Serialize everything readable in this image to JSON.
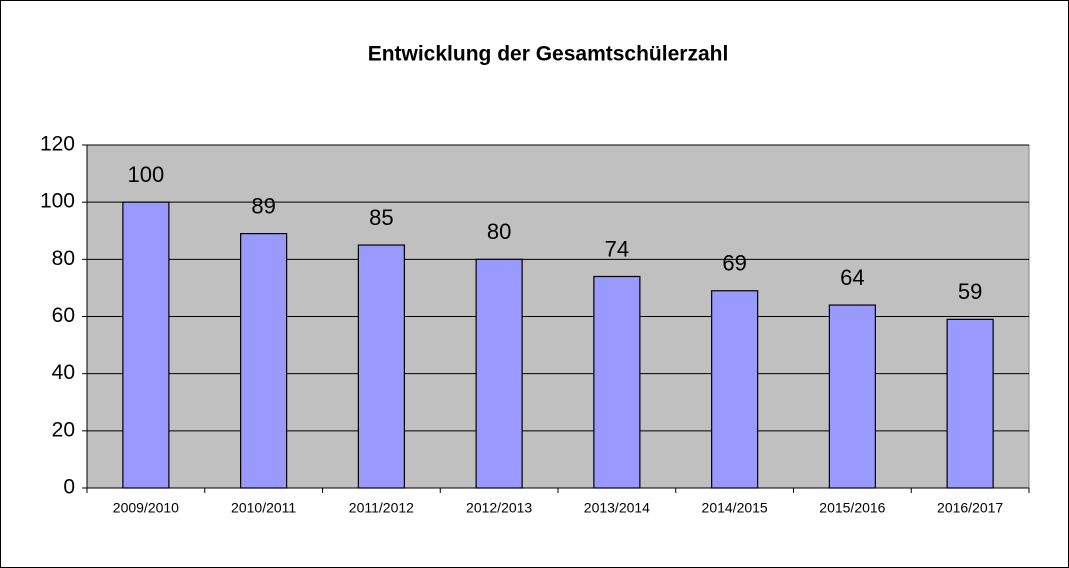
{
  "chart_data": {
    "type": "bar",
    "title": "Entwicklung der Gesamtschülerzahl",
    "categories": [
      "2009/2010",
      "2010/2011",
      "2011/2012",
      "2012/2013",
      "2013/2014",
      "2014/2015",
      "2015/2016",
      "2016/2017"
    ],
    "values": [
      100,
      89,
      85,
      80,
      74,
      69,
      64,
      59
    ],
    "color": "#9999ff",
    "ylim": [
      0,
      120
    ],
    "yticks": [
      0,
      20,
      40,
      60,
      80,
      100,
      120
    ],
    "grid": true
  }
}
